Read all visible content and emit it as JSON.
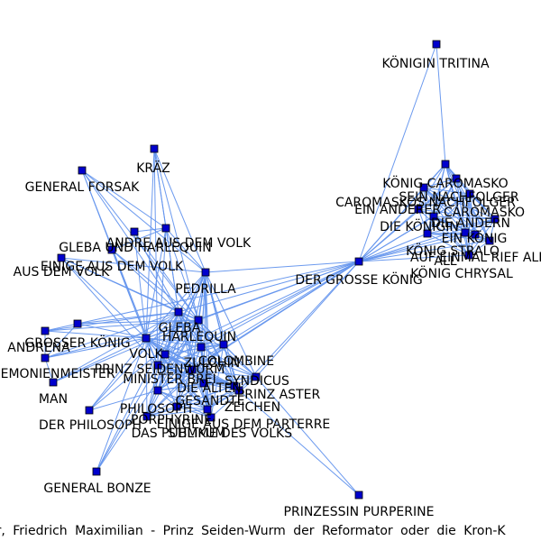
{
  "caption": "er, Friedrich Maximilian - Prinz Seiden-Wurm der Reformator oder die Kron-K",
  "colors": {
    "node": "#0000cd",
    "edge": "#6495ed",
    "label": "#000000",
    "background": "#ffffff"
  },
  "nodes": [
    {
      "id": "konigin_tritina",
      "label": "KÖNIGIN TRITINA"
    },
    {
      "id": "konig_caromasko",
      "label": "KÖNIG CAROMASKO"
    },
    {
      "id": "sein_nachfolger",
      "label": "SEIN NACHFOLGER"
    },
    {
      "id": "caromasko",
      "label": "CAROMASKO"
    },
    {
      "id": "caromaskos_nachfolger",
      "label": "CAROMASKOS NACHFOLGER"
    },
    {
      "id": "ein_anderer",
      "label": "EIN ANDERER"
    },
    {
      "id": "die_konigin",
      "label": "DIE KÖNIGIN"
    },
    {
      "id": "die_anderen",
      "label": "DIE ANDERN"
    },
    {
      "id": "ein_konig",
      "label": "EIN KÖNIG"
    },
    {
      "id": "konig_stralo",
      "label": "KÖNIG STRALO"
    },
    {
      "id": "auf_einmal_rief",
      "label": "AUF EINMAL RIEF ALL"
    },
    {
      "id": "alle",
      "label": "ALL"
    },
    {
      "id": "konig_chrysal",
      "label": "KÖNIG CHRYSAL"
    },
    {
      "id": "der_grosse_konig",
      "label": "DER GROSSE KÖNIG"
    },
    {
      "id": "general_forsak",
      "label": "GENERAL FORSAK"
    },
    {
      "id": "kraz",
      "label": "KRÄZ"
    },
    {
      "id": "andre_aus_dem_volk",
      "label": "ANDRE AUS DEM VOLK"
    },
    {
      "id": "gleba_und_harlequin",
      "label": "GLEBA UND HARLEQUIN"
    },
    {
      "id": "einige_aus_dem_volk",
      "label": "EINIGE AUS DEM VOLK"
    },
    {
      "id": "aus_dem_volk",
      "label": "AUS DEM VOLK"
    },
    {
      "id": "pedrilla",
      "label": "PEDRILLA"
    },
    {
      "id": "gleba",
      "label": "GLEBA"
    },
    {
      "id": "harlequin",
      "label": "HARLEQUIN"
    },
    {
      "id": "grosser_konig",
      "label": "GROSSER KÖNIG"
    },
    {
      "id": "andrena",
      "label": "ANDRENA"
    },
    {
      "id": "volk",
      "label": "VOLK"
    },
    {
      "id": "zeremonienmeister",
      "label": "ZEREMONIENMEISTER"
    },
    {
      "id": "prinz_seidenwurm",
      "label": "PRINZ SEIDENWURM"
    },
    {
      "id": "zulchin",
      "label": "ZULCHIN"
    },
    {
      "id": "colombine",
      "label": "COLOMBINE"
    },
    {
      "id": "minister_brei",
      "label": "MINISTER BREI"
    },
    {
      "id": "syndicus",
      "label": "SYNDICUS"
    },
    {
      "id": "die_alten",
      "label": "DIE ALTEN"
    },
    {
      "id": "prinz_aster",
      "label": "PRINZ ASTER"
    },
    {
      "id": "man",
      "label": "MAN"
    },
    {
      "id": "philosoph",
      "label": "PHILOSOPH"
    },
    {
      "id": "gesandte",
      "label": "GESANDTE"
    },
    {
      "id": "zeichen",
      "label": "ZEICHEN"
    },
    {
      "id": "porphyrine",
      "label": "PORPHYRINE"
    },
    {
      "id": "der_philosoph",
      "label": "DER PHILOSOPH"
    },
    {
      "id": "einige_aus_dem_parterre",
      "label": "EINIGE AUS DEM PARTERRE"
    },
    {
      "id": "das_publikum",
      "label": "DAS PUBLIKUM"
    },
    {
      "id": "stimme_des_volks",
      "label": "STIMME DES VOLKS"
    },
    {
      "id": "general_bonze",
      "label": "GENERAL BONZE"
    },
    {
      "id": "prinzessin_purperine",
      "label": "PRINZESSIN PURPERINE"
    }
  ]
}
